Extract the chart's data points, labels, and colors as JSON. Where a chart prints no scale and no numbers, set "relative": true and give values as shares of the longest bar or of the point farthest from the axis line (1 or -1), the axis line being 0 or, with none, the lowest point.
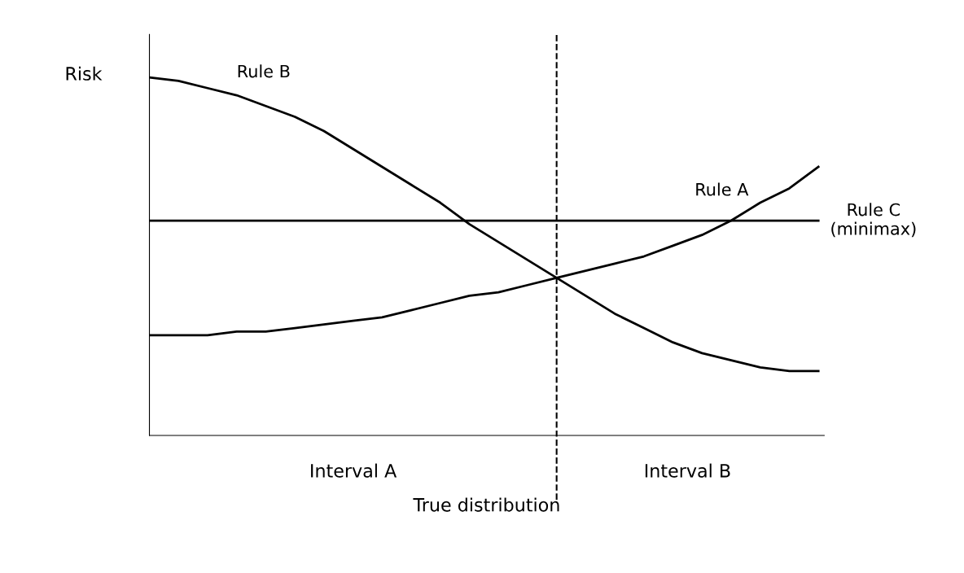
{
  "chart_data": {
    "type": "line",
    "relative": true,
    "ylabel": "Risk",
    "xlabel": "True distribution",
    "categories": [
      null,
      null,
      null,
      null,
      null,
      null,
      null,
      null,
      null,
      null,
      null,
      null,
      null,
      null,
      null,
      null,
      null,
      null,
      null,
      null,
      null,
      null,
      null,
      null
    ],
    "series": [
      {
        "name": "Rule B",
        "color": "#000000",
        "values": [
          1.0,
          0.99,
          0.97,
          0.95,
          0.92,
          0.89,
          0.85,
          0.8,
          0.75,
          0.7,
          0.65,
          0.59,
          0.54,
          0.49,
          0.44,
          0.39,
          0.34,
          0.3,
          0.26,
          0.23,
          0.21,
          0.19,
          0.18,
          0.18
        ]
      },
      {
        "name": "Rule A",
        "color": "#000000",
        "values": [
          0.28,
          0.28,
          0.28,
          0.29,
          0.29,
          0.3,
          0.31,
          0.32,
          0.33,
          0.35,
          0.37,
          0.39,
          0.4,
          0.42,
          0.44,
          0.46,
          0.48,
          0.5,
          0.53,
          0.56,
          0.6,
          0.65,
          0.69,
          0.75
        ]
      },
      {
        "name": "Rule C\n(minimax)",
        "color": "#000000",
        "values": [
          0.6,
          0.6,
          0.6,
          0.6,
          0.6,
          0.6,
          0.6,
          0.6,
          0.6,
          0.6,
          0.6,
          0.6,
          0.6,
          0.6,
          0.6,
          0.6,
          0.6,
          0.6,
          0.6,
          0.6,
          0.6,
          0.6,
          0.6,
          0.6
        ]
      }
    ],
    "annotations": [
      "Interval A",
      "Interval B"
    ],
    "legend": false,
    "marker": "none",
    "line_style": "solid"
  }
}
